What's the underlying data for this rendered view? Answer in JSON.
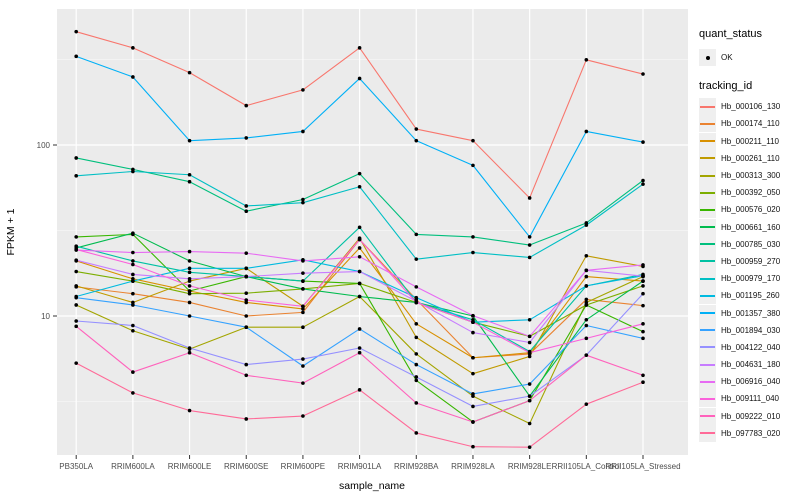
{
  "figure": {
    "background": "#FFFFFF",
    "panel_background": "#EBEBEB",
    "grid_color": "#FFFFFF",
    "tick_color": "#333333",
    "tick_label_color": "#4D4D4D",
    "point_color": "#000000",
    "legend_key_background": "#EFEFEF"
  },
  "legend": {
    "quant_status_title": "quant_status",
    "quant_status_label": "OK",
    "tracking_id_title": "tracking_id"
  },
  "chart_data": {
    "type": "line",
    "title": "",
    "xlabel": "sample_name",
    "ylabel": "FPKM + 1",
    "y_scale": "log10",
    "grid": true,
    "legend_position": "right",
    "marker": "black-point",
    "quant_status": "OK",
    "y_ticks": [
      {
        "label": "100",
        "value": 100
      },
      {
        "label": "10",
        "value": 10
      }
    ],
    "ylim_log10": [
      0.15,
      2.8
    ],
    "categories": [
      "PB350LA",
      "RRIM600LA",
      "RRIM600LE",
      "RRIM600SE",
      "RRIM600PE",
      "RRIM901LA",
      "RRIM928BA",
      "RRIM928LA",
      "RRIM928LE",
      "RRII105LA_Control",
      "RRII105LA_Stressed"
    ],
    "series": [
      {
        "name": "Hb_000106_130",
        "color": "#F8766D",
        "values": [
          460,
          370,
          265,
          170,
          210,
          370,
          124,
          106,
          49,
          315,
          260
        ]
      },
      {
        "name": "Hb_000174_110",
        "color": "#EA8331",
        "values": [
          14.8,
          13.5,
          12.0,
          10.0,
          10.5,
          28,
          12.5,
          5.7,
          6.0,
          12.5,
          11.5
        ]
      },
      {
        "name": "Hb_000211_110",
        "color": "#D89000",
        "values": [
          21,
          16.5,
          14,
          12,
          11,
          25,
          9,
          5.7,
          6.1,
          17,
          16
        ]
      },
      {
        "name": "Hb_000261_110",
        "color": "#C09B00",
        "values": [
          15,
          12,
          16,
          19,
          11.4,
          28.5,
          7.5,
          4.6,
          5.8,
          22.5,
          19.5
        ]
      },
      {
        "name": "Hb_000313_300",
        "color": "#A3A500",
        "values": [
          11.6,
          8.2,
          6.4,
          8.6,
          8.6,
          13,
          6.0,
          3.4,
          2.35,
          12,
          17
        ]
      },
      {
        "name": "Hb_000392_050",
        "color": "#7CAE00",
        "values": [
          18.2,
          16,
          13.5,
          13.6,
          14.4,
          15.5,
          12,
          9.2,
          7.6,
          11.6,
          15
        ]
      },
      {
        "name": "Hb_000576_020",
        "color": "#39B600",
        "values": [
          29,
          30,
          14,
          17,
          16,
          15.5,
          4.2,
          2.4,
          3.2,
          11.6,
          8.1
        ]
      },
      {
        "name": "Hb_000661_160",
        "color": "#00BB4E",
        "values": [
          25,
          30.5,
          21,
          17,
          14.4,
          13,
          12,
          10,
          3.4,
          9.5,
          16
        ]
      },
      {
        "name": "Hb_000785_030",
        "color": "#00BF7D",
        "values": [
          84,
          72,
          61,
          41,
          48,
          68,
          30,
          29,
          26,
          35,
          62
        ]
      },
      {
        "name": "Hb_000959_270",
        "color": "#00C1A3",
        "values": [
          25.6,
          21,
          18,
          17,
          16,
          33,
          12,
          9.5,
          6.2,
          15,
          17.5
        ]
      },
      {
        "name": "Hb_000979_170",
        "color": "#00BFC4",
        "values": [
          66,
          70,
          67,
          44,
          46,
          57,
          21.5,
          23.5,
          22,
          34,
          59
        ]
      },
      {
        "name": "Hb_001195_260",
        "color": "#00BAE0",
        "values": [
          13,
          16,
          19,
          19,
          21.3,
          18.2,
          12.8,
          9.2,
          9.5,
          15,
          17.2
        ]
      },
      {
        "name": "Hb_001357_380",
        "color": "#00B0F6",
        "values": [
          330,
          250,
          106,
          110,
          120,
          245,
          106,
          76,
          29,
          120,
          104
        ]
      },
      {
        "name": "Hb_001894_030",
        "color": "#35A2FF",
        "values": [
          12.8,
          11.6,
          10,
          8.6,
          5.1,
          8.4,
          5.2,
          3.5,
          4.0,
          8.8,
          7.4
        ]
      },
      {
        "name": "Hb_004122_040",
        "color": "#9590FF",
        "values": [
          9.35,
          8.8,
          6.5,
          5.2,
          5.6,
          6.5,
          4.4,
          2.96,
          3.4,
          5.9,
          13.5
        ]
      },
      {
        "name": "Hb_004631_180",
        "color": "#C77CFF",
        "values": [
          21.2,
          17.5,
          16.5,
          17.0,
          17.8,
          18.2,
          12.2,
          8.0,
          7.0,
          18.5,
          17.1
        ]
      },
      {
        "name": "Hb_006916_040",
        "color": "#E76BF3",
        "values": [
          24.3,
          23.5,
          23.8,
          23.3,
          21,
          22.2,
          14.8,
          10.05,
          7.6,
          18.5,
          19.9
        ]
      },
      {
        "name": "Hb_009111_040",
        "color": "#FA62DB",
        "values": [
          24.5,
          20,
          15.0,
          12.4,
          11.4,
          28,
          12.0,
          9.2,
          6.1,
          7.4,
          9.0
        ]
      },
      {
        "name": "Hb_009222_010",
        "color": "#FF62BC",
        "values": [
          8.7,
          4.7,
          6.1,
          4.5,
          4.05,
          6.1,
          3.1,
          2.4,
          3.2,
          5.9,
          4.5
        ]
      },
      {
        "name": "Hb_097783_020",
        "color": "#FF6A98",
        "values": [
          5.3,
          3.55,
          2.8,
          2.5,
          2.6,
          3.7,
          2.07,
          1.72,
          1.71,
          3.05,
          4.1
        ]
      }
    ]
  }
}
